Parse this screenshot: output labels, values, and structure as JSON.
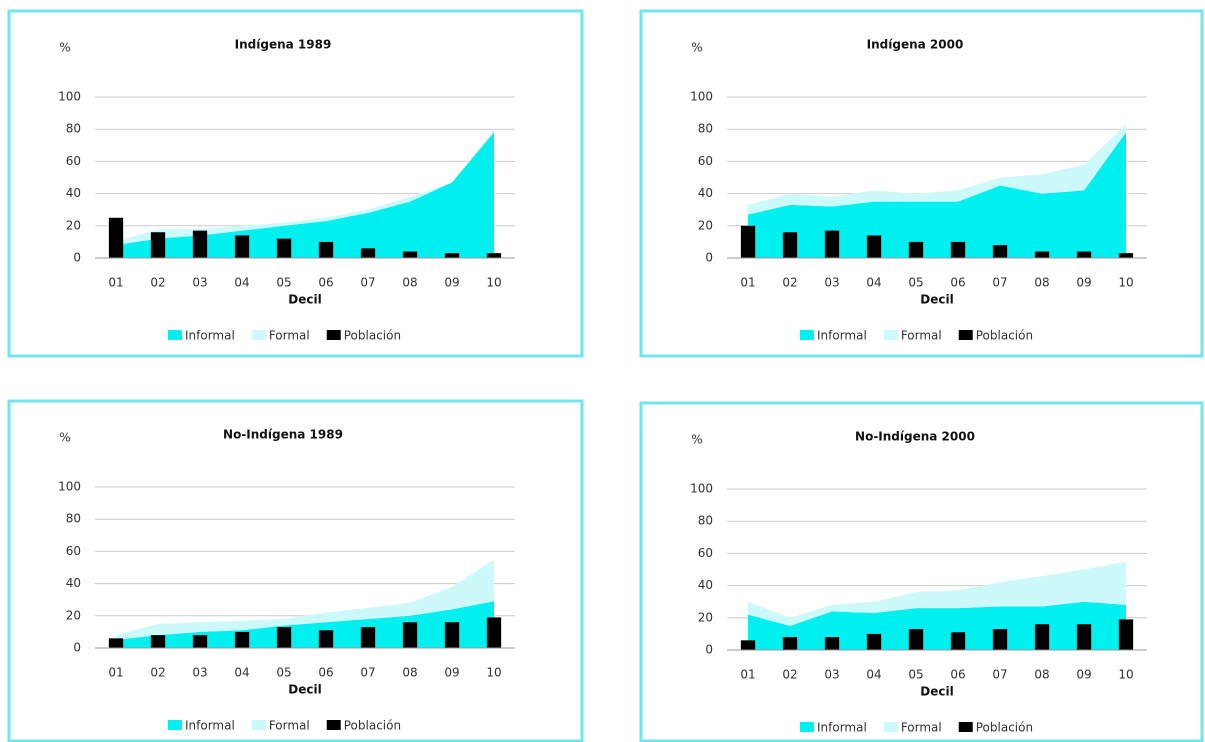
{
  "chart_data": [
    {
      "type": "combo",
      "title": "Indígena 1989",
      "y_label": "%",
      "x_label": "Decil",
      "categories": [
        "01",
        "02",
        "03",
        "04",
        "05",
        "06",
        "07",
        "08",
        "09",
        "10"
      ],
      "ylim": [
        0,
        100
      ],
      "yticks": [
        0,
        20,
        40,
        60,
        80,
        100
      ],
      "grid": true,
      "legend": "bottom",
      "series": [
        {
          "name": "Informal",
          "color": "#00f0f0",
          "kind": "area",
          "stacked": true,
          "values": [
            8,
            12,
            14,
            17,
            20,
            23,
            28,
            35,
            47,
            78
          ]
        },
        {
          "name": "Formal",
          "color": "#ccfafa",
          "kind": "area",
          "stacked": true,
          "values": [
            2,
            6,
            4,
            3,
            2,
            2,
            2,
            3,
            0,
            2
          ]
        },
        {
          "name": "Población",
          "color": "#000000",
          "kind": "bar",
          "values": [
            25,
            16,
            17,
            14,
            12,
            10,
            6,
            4,
            3,
            3
          ]
        }
      ]
    },
    {
      "type": "combo",
      "title": "Indígena 2000",
      "y_label": "%",
      "x_label": "Decil",
      "categories": [
        "01",
        "02",
        "03",
        "04",
        "05",
        "06",
        "07",
        "08",
        "09",
        "10"
      ],
      "ylim": [
        0,
        100
      ],
      "yticks": [
        0,
        20,
        40,
        60,
        80,
        100
      ],
      "grid": true,
      "legend": "bottom",
      "series": [
        {
          "name": "Informal",
          "color": "#00f0f0",
          "kind": "area",
          "stacked": true,
          "values": [
            27,
            33,
            32,
            35,
            35,
            35,
            45,
            40,
            42,
            78
          ]
        },
        {
          "name": "Formal",
          "color": "#ccfafa",
          "kind": "area",
          "stacked": true,
          "values": [
            6,
            7,
            6,
            7,
            5,
            7,
            5,
            12,
            16,
            5
          ]
        },
        {
          "name": "Población",
          "color": "#000000",
          "kind": "bar",
          "values": [
            20,
            16,
            17,
            14,
            10,
            10,
            8,
            4,
            4,
            3
          ]
        }
      ]
    },
    {
      "type": "combo",
      "title": "No-Indígena 1989",
      "y_label": "%",
      "x_label": "Decil",
      "categories": [
        "01",
        "02",
        "03",
        "04",
        "05",
        "06",
        "07",
        "08",
        "09",
        "10"
      ],
      "ylim": [
        0,
        100
      ],
      "yticks": [
        0,
        20,
        40,
        60,
        80,
        100
      ],
      "grid": true,
      "legend": "bottom",
      "series": [
        {
          "name": "Informal",
          "color": "#00f0f0",
          "kind": "area",
          "stacked": true,
          "values": [
            5,
            8,
            10,
            11,
            14,
            16,
            18,
            20,
            24,
            29
          ]
        },
        {
          "name": "Formal",
          "color": "#ccfafa",
          "kind": "area",
          "stacked": true,
          "values": [
            3,
            7,
            6,
            6,
            4,
            6,
            7,
            8,
            14,
            26
          ]
        },
        {
          "name": "Población",
          "color": "#000000",
          "kind": "bar",
          "values": [
            6,
            8,
            8,
            10,
            13,
            11,
            13,
            16,
            16,
            19
          ]
        }
      ]
    },
    {
      "type": "combo",
      "title": "No-Indígena 2000",
      "y_label": "%",
      "x_label": "Decil",
      "categories": [
        "01",
        "02",
        "03",
        "04",
        "05",
        "06",
        "07",
        "08",
        "09",
        "10"
      ],
      "ylim": [
        0,
        100
      ],
      "yticks": [
        0,
        20,
        40,
        60,
        80,
        100
      ],
      "grid": true,
      "legend": "bottom",
      "series": [
        {
          "name": "Informal",
          "color": "#00f0f0",
          "kind": "area",
          "stacked": true,
          "values": [
            22,
            15,
            24,
            23,
            26,
            26,
            27,
            27,
            30,
            28
          ]
        },
        {
          "name": "Formal",
          "color": "#ccfafa",
          "kind": "area",
          "stacked": true,
          "values": [
            8,
            5,
            4,
            7,
            10,
            11,
            15,
            19,
            20,
            27
          ]
        },
        {
          "name": "Población",
          "color": "#000000",
          "kind": "bar",
          "values": [
            6,
            8,
            8,
            10,
            13,
            11,
            13,
            16,
            16,
            19
          ]
        }
      ]
    }
  ]
}
